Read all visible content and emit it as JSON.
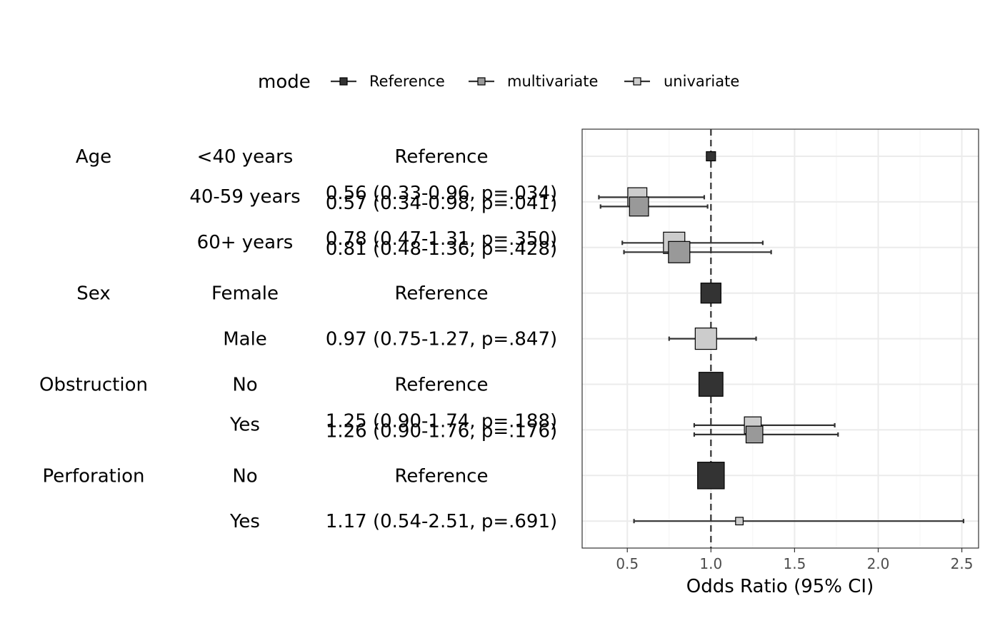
{
  "chart_data": {
    "type": "forest",
    "xlabel": "Odds Ratio (95% CI)",
    "xlim": [
      0.23,
      2.6
    ],
    "x_ticks": [
      "0.5",
      "1.0",
      "1.5",
      "2.0",
      "2.5"
    ],
    "x_tick_values": [
      0.5,
      1.0,
      1.5,
      2.0,
      2.5
    ],
    "reference_line": 1.0,
    "grid": true,
    "legend": {
      "title": "mode",
      "position": "top",
      "entries": [
        {
          "label": "Reference",
          "color": "#333333"
        },
        {
          "label": "multivariate",
          "color": "#999999"
        },
        {
          "label": "univariate",
          "color": "#cccccc"
        }
      ]
    },
    "rows": [
      {
        "variable": "Age",
        "level": "<40 years",
        "texts": [
          "Reference"
        ]
      },
      {
        "variable": "",
        "level": "40-59 years",
        "texts": [
          "0.56 (0.33-0.96, p=.034)",
          "0.57 (0.34-0.98, p=.041)"
        ]
      },
      {
        "variable": "",
        "level": "60+ years",
        "texts": [
          "0.78 (0.47-1.31, p=.350)",
          "0.81 (0.48-1.36, p=.428)"
        ]
      },
      {
        "variable": "Sex",
        "level": "Female",
        "texts": [
          "Reference"
        ]
      },
      {
        "variable": "",
        "level": "Male",
        "texts": [
          "0.97 (0.75-1.27, p=.847)"
        ]
      },
      {
        "variable": "Obstruction",
        "level": "No",
        "texts": [
          "Reference"
        ]
      },
      {
        "variable": "",
        "level": "Yes",
        "texts": [
          "1.25 (0.90-1.74, p=.188)",
          "1.26 (0.90-1.76, p=.176)"
        ]
      },
      {
        "variable": "Perforation",
        "level": "No",
        "texts": [
          "Reference"
        ]
      },
      {
        "variable": "",
        "level": "Yes",
        "texts": [
          "1.17 (0.54-2.51, p=.691)"
        ]
      }
    ],
    "estimates": [
      {
        "row": 0,
        "mode": "Reference",
        "or": 1.0,
        "lower": null,
        "upper": null,
        "weight": 0.15
      },
      {
        "row": 1,
        "mode": "univariate",
        "or": 0.56,
        "lower": 0.33,
        "upper": 0.96,
        "weight": 0.45
      },
      {
        "row": 1,
        "mode": "multivariate",
        "or": 0.57,
        "lower": 0.34,
        "upper": 0.98,
        "weight": 0.45
      },
      {
        "row": 2,
        "mode": "univariate",
        "or": 0.78,
        "lower": 0.47,
        "upper": 1.31,
        "weight": 0.52
      },
      {
        "row": 2,
        "mode": "multivariate",
        "or": 0.81,
        "lower": 0.48,
        "upper": 1.36,
        "weight": 0.52
      },
      {
        "row": 3,
        "mode": "Reference",
        "or": 1.0,
        "lower": null,
        "upper": null,
        "weight": 0.48
      },
      {
        "row": 4,
        "mode": "univariate",
        "or": 0.97,
        "lower": 0.75,
        "upper": 1.27,
        "weight": 0.52
      },
      {
        "row": 5,
        "mode": "Reference",
        "or": 1.0,
        "lower": null,
        "upper": null,
        "weight": 0.6
      },
      {
        "row": 6,
        "mode": "univariate",
        "or": 1.25,
        "lower": 0.9,
        "upper": 1.74,
        "weight": 0.38
      },
      {
        "row": 6,
        "mode": "multivariate",
        "or": 1.26,
        "lower": 0.9,
        "upper": 1.76,
        "weight": 0.38
      },
      {
        "row": 7,
        "mode": "Reference",
        "or": 1.0,
        "lower": null,
        "upper": null,
        "weight": 0.68
      },
      {
        "row": 8,
        "mode": "univariate",
        "or": 1.17,
        "lower": 0.54,
        "upper": 2.51,
        "weight": 0.1
      }
    ]
  }
}
